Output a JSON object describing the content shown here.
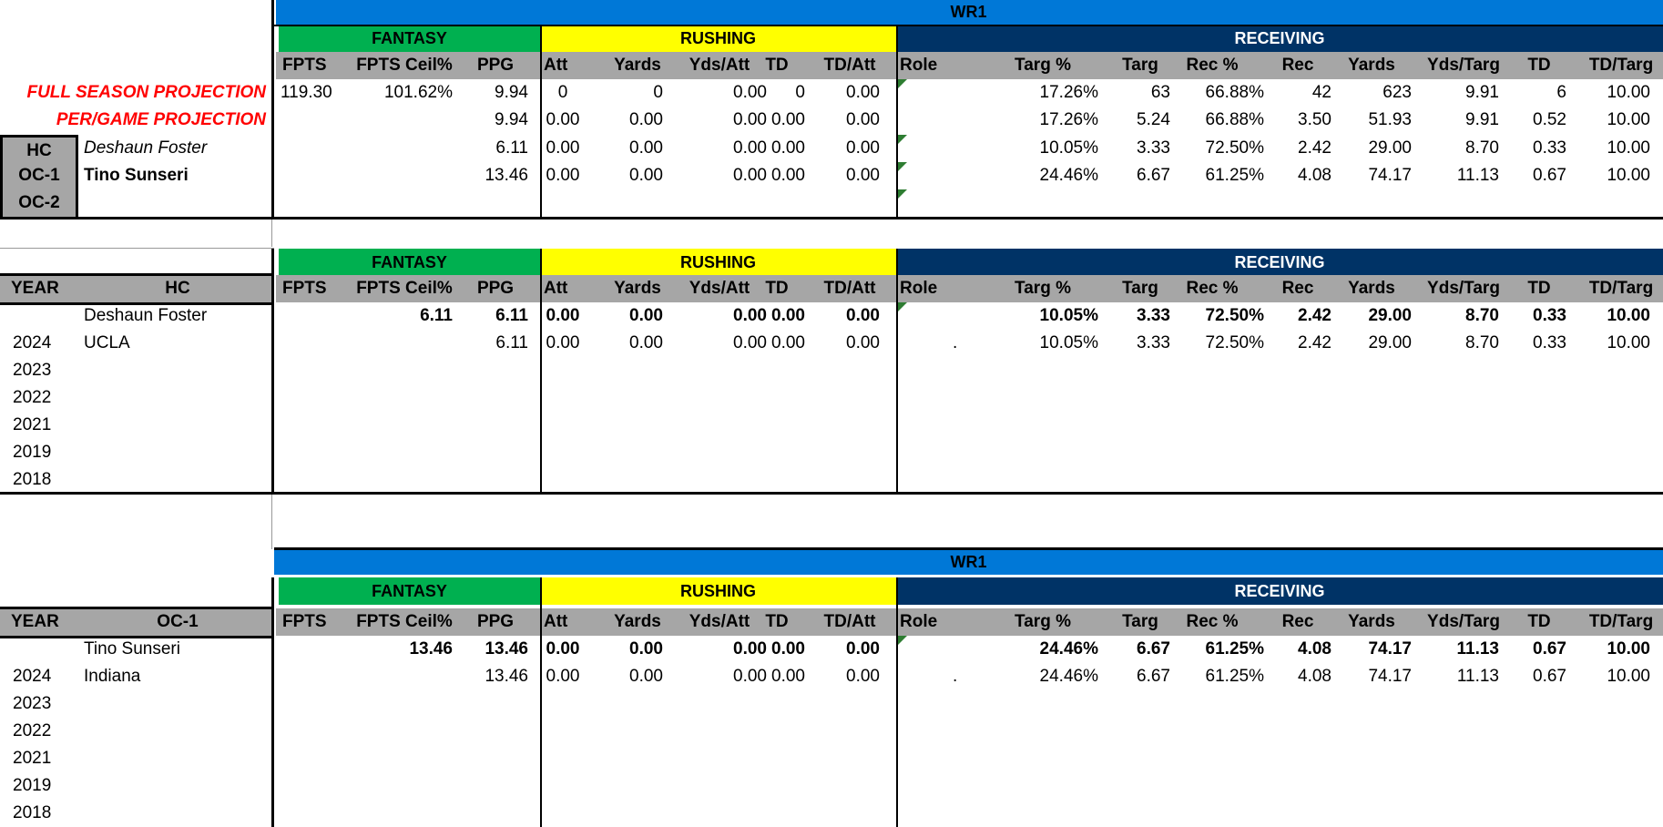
{
  "section_titles": {
    "wr1": "WR1",
    "fantasy": "FANTASY",
    "rushing": "RUSHING",
    "receiving": "RECEIVING"
  },
  "colors": {
    "blue": "#0078d7",
    "green": "#00b050",
    "yellow": "#ffff00",
    "navy": "#003366",
    "gray": "#a6a6a6",
    "red": "#ff0000"
  },
  "columns": [
    "FPTS",
    "FPTS Ceil%",
    "PPG",
    "Att",
    "Yards",
    "Yds/Att",
    "TD",
    "TD/Att",
    "Role",
    "Targ %",
    "Targ",
    "Rec %",
    "Rec",
    "Yards",
    "Yds/Targ",
    "TD",
    "TD/Targ"
  ],
  "projection": {
    "labels": {
      "full": "FULL SEASON PROJECTION",
      "per_game": "PER/GAME PROJECTION"
    },
    "staff_labels": {
      "hc": "HC",
      "oc1": "OC-1",
      "oc2": "OC-2"
    },
    "staff_names": {
      "hc": "Deshaun Foster",
      "oc1": "Tino Sunseri"
    },
    "rows": [
      [
        "119.30",
        "101.62%",
        "9.94",
        "0",
        "0",
        "0.00",
        "0",
        "0.00",
        "",
        "17.26%",
        "63",
        "66.88%",
        "42",
        "623",
        "9.91",
        "6",
        "10.00"
      ],
      [
        "",
        "",
        "9.94",
        "0.00",
        "0.00",
        "0.00",
        "0.00",
        "0.00",
        "",
        "17.26%",
        "5.24",
        "66.88%",
        "3.50",
        "51.93",
        "9.91",
        "0.52",
        "10.00"
      ],
      [
        "",
        "",
        "6.11",
        "0.00",
        "0.00",
        "0.00",
        "0.00",
        "0.00",
        "",
        "10.05%",
        "3.33",
        "72.50%",
        "2.42",
        "29.00",
        "8.70",
        "0.33",
        "10.00"
      ],
      [
        "",
        "",
        "13.46",
        "0.00",
        "0.00",
        "0.00",
        "0.00",
        "0.00",
        "",
        "24.46%",
        "6.67",
        "61.25%",
        "4.08",
        "74.17",
        "11.13",
        "0.67",
        "10.00"
      ]
    ]
  },
  "hc_table": {
    "year_header": "YEAR",
    "role_header": "HC",
    "summary_name": "Deshaun Foster",
    "summary": [
      "",
      "6.11",
      "6.11",
      "0.00",
      "0.00",
      "0.00",
      "0.00",
      "0.00",
      "",
      "10.05%",
      "3.33",
      "72.50%",
      "2.42",
      "29.00",
      "8.70",
      "0.33",
      "10.00"
    ],
    "rows": [
      {
        "year": "2024",
        "team": "UCLA",
        "values": [
          "",
          "",
          "6.11",
          "0.00",
          "0.00",
          "0.00",
          "0.00",
          "0.00",
          ".",
          "10.05%",
          "3.33",
          "72.50%",
          "2.42",
          "29.00",
          "8.70",
          "0.33",
          "10.00"
        ]
      },
      {
        "year": "2023",
        "team": "",
        "values": []
      },
      {
        "year": "2022",
        "team": "",
        "values": []
      },
      {
        "year": "2021",
        "team": "",
        "values": []
      },
      {
        "year": "2019",
        "team": "",
        "values": []
      },
      {
        "year": "2018",
        "team": "",
        "values": []
      }
    ]
  },
  "oc_table": {
    "year_header": "YEAR",
    "role_header": "OC-1",
    "summary_name": "Tino Sunseri",
    "summary": [
      "",
      "13.46",
      "13.46",
      "0.00",
      "0.00",
      "0.00",
      "0.00",
      "0.00",
      "",
      "24.46%",
      "6.67",
      "61.25%",
      "4.08",
      "74.17",
      "11.13",
      "0.67",
      "10.00"
    ],
    "rows": [
      {
        "year": "2024",
        "team": "Indiana",
        "values": [
          "",
          "",
          "13.46",
          "0.00",
          "0.00",
          "0.00",
          "0.00",
          "0.00",
          ".",
          "24.46%",
          "6.67",
          "61.25%",
          "4.08",
          "74.17",
          "11.13",
          "0.67",
          "10.00"
        ]
      },
      {
        "year": "2023",
        "team": "",
        "values": []
      },
      {
        "year": "2022",
        "team": "",
        "values": []
      },
      {
        "year": "2021",
        "team": "",
        "values": []
      },
      {
        "year": "2019",
        "team": "",
        "values": []
      },
      {
        "year": "2018",
        "team": "",
        "values": []
      }
    ]
  }
}
